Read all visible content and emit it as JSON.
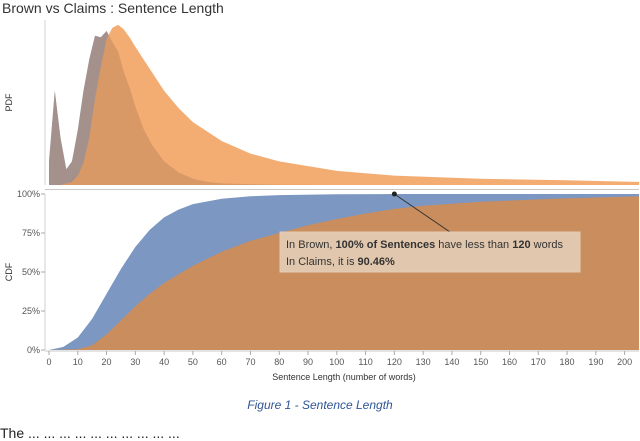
{
  "title": "Brown vs Claims : Sentence Length",
  "caption": "Figure 1 - Sentence Length",
  "bottom_text": "The ... ... ... ... ... ... ... ... ... ...",
  "colors": {
    "brown": "#7b97c2",
    "claims": "#f2a96b",
    "overlap": "#c98d5e"
  },
  "chart_data": [
    {
      "type": "area",
      "ylabel": "PDF",
      "xlim": [
        0,
        205
      ],
      "grid": false,
      "series": [
        {
          "name": "Brown",
          "color": "#7b97c2",
          "x": [
            0,
            2,
            4,
            6,
            8,
            10,
            12,
            14,
            16,
            18,
            20,
            22,
            24,
            26,
            28,
            30,
            33,
            36,
            40,
            45,
            50,
            55,
            60,
            70,
            80,
            100
          ],
          "y": [
            0.015,
            0.06,
            0.03,
            0.01,
            0.015,
            0.035,
            0.06,
            0.08,
            0.095,
            0.094,
            0.098,
            0.091,
            0.085,
            0.072,
            0.062,
            0.05,
            0.035,
            0.025,
            0.015,
            0.008,
            0.004,
            0.002,
            0.001,
            0.0005,
            0.0002,
            0
          ]
        },
        {
          "name": "Claims",
          "color": "#f2a96b",
          "x": [
            0,
            4,
            8,
            10,
            12,
            14,
            16,
            18,
            20,
            22,
            24,
            26,
            28,
            30,
            35,
            40,
            45,
            50,
            60,
            70,
            80,
            100,
            120,
            150,
            180,
            205
          ],
          "y": [
            0,
            0,
            0.002,
            0.006,
            0.014,
            0.03,
            0.055,
            0.075,
            0.093,
            0.1,
            0.102,
            0.099,
            0.094,
            0.088,
            0.074,
            0.06,
            0.049,
            0.04,
            0.028,
            0.02,
            0.015,
            0.009,
            0.006,
            0.004,
            0.003,
            0.002
          ]
        }
      ]
    },
    {
      "type": "area",
      "ylabel": "CDF",
      "xlabel": "Sentence Length (number of words)",
      "xlim": [
        0,
        205
      ],
      "ylim": [
        0,
        1
      ],
      "x_ticks": [
        0,
        10,
        20,
        30,
        40,
        50,
        60,
        70,
        80,
        90,
        100,
        110,
        120,
        130,
        140,
        150,
        160,
        170,
        180,
        190,
        200
      ],
      "y_ticks": [
        0,
        0.25,
        0.5,
        0.75,
        1
      ],
      "y_tick_labels": [
        "0%",
        "25%",
        "50%",
        "75%",
        "100%"
      ],
      "series": [
        {
          "name": "Brown",
          "color": "#7b97c2",
          "x": [
            0,
            5,
            10,
            15,
            20,
            25,
            30,
            35,
            40,
            45,
            50,
            60,
            70,
            80,
            100,
            120,
            150,
            205
          ],
          "y": [
            0,
            0.02,
            0.08,
            0.2,
            0.36,
            0.52,
            0.66,
            0.77,
            0.85,
            0.9,
            0.935,
            0.97,
            0.985,
            0.993,
            0.998,
            1,
            1,
            1
          ]
        },
        {
          "name": "Claims",
          "color": "#f2a96b",
          "x": [
            0,
            10,
            15,
            20,
            25,
            30,
            35,
            40,
            50,
            60,
            70,
            80,
            90,
            100,
            110,
            120,
            130,
            150,
            175,
            205
          ],
          "y": [
            0,
            0.005,
            0.03,
            0.1,
            0.19,
            0.28,
            0.36,
            0.43,
            0.54,
            0.63,
            0.7,
            0.75,
            0.8,
            0.84,
            0.875,
            0.9046,
            0.925,
            0.95,
            0.97,
            0.985
          ]
        }
      ],
      "annotation": {
        "x": 120,
        "y": 1.0,
        "line1": {
          "a": "In Brown, ",
          "b": "100% of Sentences",
          "c": " have less than ",
          "d": "120",
          "e": " words"
        },
        "line2": {
          "a": "In Claims, it is ",
          "b": "90.46%"
        }
      }
    }
  ]
}
